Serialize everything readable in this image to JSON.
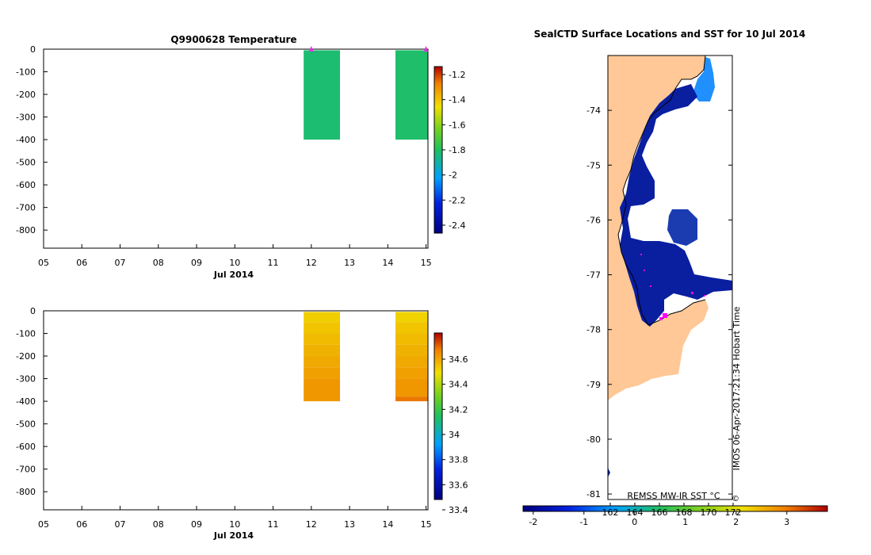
{
  "chart_data": [
    {
      "type": "heatmap",
      "title": "Q9900628  Temperature",
      "xlabel": "Jul 2014",
      "x_ticks": [
        "05",
        "06",
        "07",
        "08",
        "09",
        "10",
        "11",
        "12",
        "13",
        "14",
        "15"
      ],
      "xlim": [
        5,
        15.05
      ],
      "y_ticks": [
        0,
        -100,
        -200,
        -300,
        -400,
        -500,
        -600,
        -700,
        -800
      ],
      "ylim": [
        -880,
        0
      ],
      "profile_markers": [
        12.0,
        15.0
      ],
      "colorbar": {
        "ticks": [
          "-1.2",
          "-1.4",
          "-1.6",
          "-1.8",
          "-2",
          "-2.2",
          "-2.4"
        ],
        "range": [
          -2.5,
          -1.15
        ]
      },
      "cells": [
        {
          "day_start": 11.8,
          "day_end": 12.75,
          "bands": [
            {
              "depth_top": -5,
              "depth_bottom": -400,
              "value": -1.85
            }
          ]
        },
        {
          "day_start": 14.2,
          "day_end": 15.05,
          "bands": [
            {
              "depth_top": -5,
              "depth_bottom": -400,
              "value": -1.84
            }
          ]
        }
      ]
    },
    {
      "type": "heatmap",
      "title": "",
      "xlabel": "Jul 2014",
      "x_ticks": [
        "05",
        "06",
        "07",
        "08",
        "09",
        "10",
        "11",
        "12",
        "13",
        "14",
        "15"
      ],
      "xlim": [
        5,
        15.05
      ],
      "y_ticks": [
        0,
        -100,
        -200,
        -300,
        -400,
        -500,
        -600,
        -700,
        -800
      ],
      "ylim": [
        -880,
        0
      ],
      "colorbar": {
        "ticks": [
          "34.6",
          "34.4",
          "34.2",
          "34",
          "33.8",
          "33.6",
          "33.4"
        ],
        "range": [
          33.3,
          34.8
        ]
      },
      "cells": [
        {
          "day_start": 11.8,
          "day_end": 12.75,
          "bands": [
            {
              "depth_top": -5,
              "depth_bottom": -50,
              "value": 34.48
            },
            {
              "depth_top": -50,
              "depth_bottom": -100,
              "value": 34.5
            },
            {
              "depth_top": -100,
              "depth_bottom": -150,
              "value": 34.52
            },
            {
              "depth_top": -150,
              "depth_bottom": -200,
              "value": 34.54
            },
            {
              "depth_top": -200,
              "depth_bottom": -250,
              "value": 34.56
            },
            {
              "depth_top": -250,
              "depth_bottom": -300,
              "value": 34.58
            },
            {
              "depth_top": -300,
              "depth_bottom": -400,
              "value": 34.6
            }
          ]
        },
        {
          "day_start": 14.2,
          "day_end": 15.05,
          "bands": [
            {
              "depth_top": -5,
              "depth_bottom": -50,
              "value": 34.47
            },
            {
              "depth_top": -50,
              "depth_bottom": -100,
              "value": 34.5
            },
            {
              "depth_top": -100,
              "depth_bottom": -150,
              "value": 34.52
            },
            {
              "depth_top": -150,
              "depth_bottom": -200,
              "value": 34.54
            },
            {
              "depth_top": -200,
              "depth_bottom": -250,
              "value": 34.56
            },
            {
              "depth_top": -250,
              "depth_bottom": -300,
              "value": 34.58
            },
            {
              "depth_top": -300,
              "depth_bottom": -380,
              "value": 34.6
            },
            {
              "depth_top": -380,
              "depth_bottom": -400,
              "value": 34.66
            }
          ]
        }
      ]
    },
    {
      "type": "map",
      "title": "SealCTD Surface Locations and SST for 10 Jul 2014",
      "lat_ticks": [
        "-74",
        "-75",
        "-76",
        "-77",
        "-78",
        "-79",
        "-80",
        "-81"
      ],
      "lat_range": [
        -81.1,
        -73.0
      ],
      "sst_label": "REMSS MW-IR SST °C",
      "watermark": "IMOS 06-Apr-2017:21:34 Hobart Time",
      "colorbar_ticks": [
        "-2",
        "-1",
        "0",
        "1",
        "2",
        "3"
      ],
      "colorbar_range": [
        -2.2,
        3.8
      ],
      "overlay_ticks": [
        "162",
        "164",
        "166",
        "168",
        "170",
        "172"
      ]
    }
  ]
}
